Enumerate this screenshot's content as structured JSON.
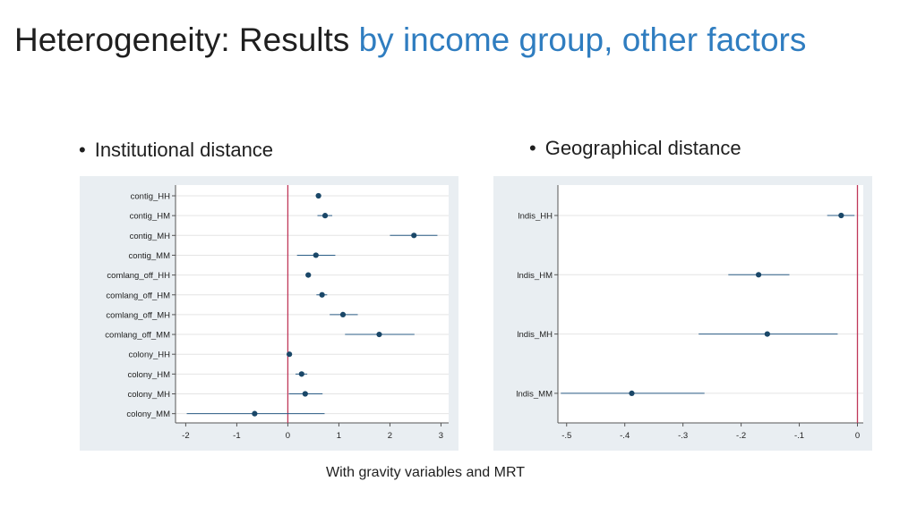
{
  "slide": {
    "title_main": "Heterogeneity: Results",
    "title_accent": "by income group, other factors",
    "bullet_left": "Institutional distance",
    "bullet_right": "Geographical distance",
    "bullet_glyph": "•",
    "footnote": "With gravity variables and MRT",
    "colors": {
      "title_accent": "#2f7dc0",
      "panel_bg": "#e9eef2",
      "point": "#1a4768",
      "ci": "#2b5d86",
      "zero_line": "#c0385a",
      "grid": "#e4e4e4"
    }
  },
  "chart_data": [
    {
      "type": "scatter",
      "subtype": "coefficient-plot",
      "title": "",
      "xlabel": "",
      "ylabel": "",
      "xlim": [
        -2.2,
        3.15
      ],
      "xticks": [
        -2,
        -1,
        0,
        1,
        2,
        3
      ],
      "xtick_labels": [
        "-2",
        "-1",
        "0",
        "1",
        "2",
        "3"
      ],
      "reference_line_x": 0,
      "grid": true,
      "legend": "none",
      "categories": [
        "contig_HH",
        "contig_HM",
        "contig_MH",
        "contig_MM",
        "comlang_off_HH",
        "comlang_off_HM",
        "comlang_off_MH",
        "comlang_off_MM",
        "colony_HH",
        "colony_HM",
        "colony_MH",
        "colony_MM"
      ],
      "estimates": [
        0.6,
        0.73,
        2.47,
        0.55,
        0.4,
        0.67,
        1.08,
        1.79,
        0.03,
        0.27,
        0.34,
        -0.65
      ],
      "ci_low": [
        0.6,
        0.58,
        2.0,
        0.18,
        0.4,
        0.56,
        0.82,
        1.12,
        0.03,
        0.15,
        0.02,
        -1.98
      ],
      "ci_high": [
        0.6,
        0.87,
        2.93,
        0.93,
        0.4,
        0.77,
        1.37,
        2.48,
        0.03,
        0.38,
        0.68,
        0.72
      ]
    },
    {
      "type": "scatter",
      "subtype": "coefficient-plot",
      "title": "",
      "xlabel": "",
      "ylabel": "",
      "xlim": [
        -0.515,
        0.01
      ],
      "xticks": [
        -0.5,
        -0.4,
        -0.3,
        -0.2,
        -0.1,
        0
      ],
      "xtick_labels": [
        "-.5",
        "-.4",
        "-.3",
        "-.2",
        "-.1",
        "0"
      ],
      "reference_line_x": 0,
      "grid": true,
      "legend": "none",
      "categories": [
        "lndis_HH",
        "lndis_HM",
        "lndis_MH",
        "lndis_MM"
      ],
      "estimates": [
        -0.028,
        -0.17,
        -0.155,
        -0.388
      ],
      "ci_low": [
        -0.052,
        -0.222,
        -0.273,
        -0.51
      ],
      "ci_high": [
        -0.005,
        -0.117,
        -0.034,
        -0.263
      ]
    }
  ]
}
